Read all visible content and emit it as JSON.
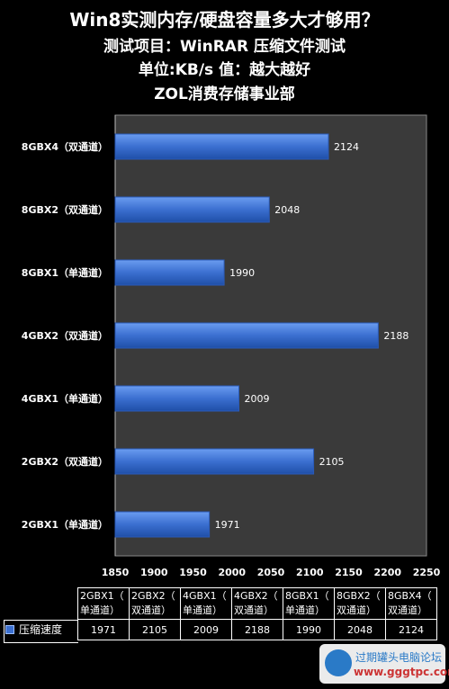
{
  "titles": {
    "line1": "Win8实测内存/硬盘容量多大才够用？",
    "line2": "测试项目：WinRAR 压缩文件测试",
    "line3": "单位:KB/s   值：越大越好",
    "line4": "ZOL消费存储事业部"
  },
  "chart_data": {
    "type": "bar",
    "orientation": "horizontal",
    "categories": [
      "8GBX4（双通道）",
      "8GBX2（双通道）",
      "8GBX1（单通道）",
      "4GBX2（双通道）",
      "4GBX1（单通道）",
      "2GBX2（双通道）",
      "2GBX1（单通道）"
    ],
    "series": [
      {
        "name": "压缩速度",
        "values": [
          2124,
          2048,
          1990,
          2188,
          2009,
          2105,
          1971
        ]
      }
    ],
    "xlim": [
      1850,
      2250
    ],
    "xticks": [
      1850,
      1900,
      1950,
      2000,
      2050,
      2100,
      2150,
      2200,
      2250
    ],
    "grid": false,
    "bar_color": "#3b6fd0",
    "plot_bg": "#3a3a3a"
  },
  "table": {
    "headers": [
      "2GBX1（\n单通道）",
      "2GBX2（\n双通道）",
      "4GBX1（\n单通道）",
      "4GBX2（\n双通道）",
      "8GBX1（\n单通道）",
      "8GBX2（\n双通道）",
      "8GBX4（\n双通道）"
    ],
    "legend_label": "压缩速度",
    "values": [
      "1971",
      "2105",
      "2009",
      "2188",
      "1990",
      "2048",
      "2124"
    ]
  },
  "watermark": {
    "line1": "过期罐头电脑论坛",
    "line2": "www.gggtpc.com"
  }
}
